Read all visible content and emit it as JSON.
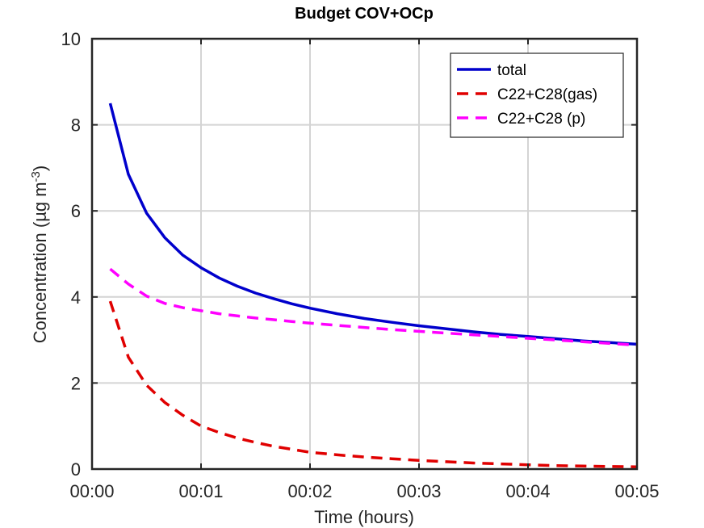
{
  "chart_data": {
    "type": "line",
    "title": "Budget COV+OCp",
    "xlabel": "Time (hours)",
    "ylabel": {
      "text": "Concentration (µg m",
      "superscript": "-3",
      "suffix": ")"
    },
    "xlim": [
      0,
      5
    ],
    "ylim": [
      0,
      10
    ],
    "grid": true,
    "legend_position": "top-right",
    "x_ticks": [
      0,
      1,
      2,
      3,
      4,
      5
    ],
    "x_tick_labels": [
      "00:00",
      "00:01",
      "00:02",
      "00:03",
      "00:04",
      "00:05"
    ],
    "y_ticks": [
      0,
      2,
      4,
      6,
      8,
      10
    ],
    "y_tick_labels": [
      "0",
      "2",
      "4",
      "6",
      "8",
      "10"
    ],
    "x": [
      0.167,
      0.333,
      0.5,
      0.667,
      0.833,
      1.0,
      1.167,
      1.333,
      1.5,
      1.667,
      1.833,
      2.0,
      2.25,
      2.5,
      2.75,
      3.0,
      3.25,
      3.5,
      3.75,
      4.0,
      4.25,
      4.5,
      4.75,
      5.0
    ],
    "series": [
      {
        "name": "total",
        "color": "#0000cc",
        "dash": "solid",
        "values": [
          8.5,
          6.85,
          5.95,
          5.38,
          4.97,
          4.68,
          4.44,
          4.25,
          4.09,
          3.96,
          3.84,
          3.74,
          3.61,
          3.5,
          3.41,
          3.33,
          3.26,
          3.19,
          3.13,
          3.08,
          3.03,
          2.98,
          2.94,
          2.9
        ]
      },
      {
        "name": "C22+C28(gas)",
        "color": "#e00000",
        "dash": "dashed",
        "values": [
          3.9,
          2.6,
          1.95,
          1.55,
          1.25,
          1.0,
          0.85,
          0.72,
          0.62,
          0.53,
          0.46,
          0.39,
          0.33,
          0.28,
          0.24,
          0.2,
          0.17,
          0.14,
          0.12,
          0.1,
          0.08,
          0.07,
          0.06,
          0.05
        ]
      },
      {
        "name": "C22+C28 (p)",
        "color": "#ff00ff",
        "dash": "dashed",
        "values": [
          4.65,
          4.3,
          4.02,
          3.85,
          3.75,
          3.68,
          3.61,
          3.56,
          3.51,
          3.47,
          3.43,
          3.39,
          3.34,
          3.29,
          3.24,
          3.2,
          3.16,
          3.12,
          3.08,
          3.04,
          3.0,
          2.96,
          2.92,
          2.88
        ]
      }
    ]
  }
}
